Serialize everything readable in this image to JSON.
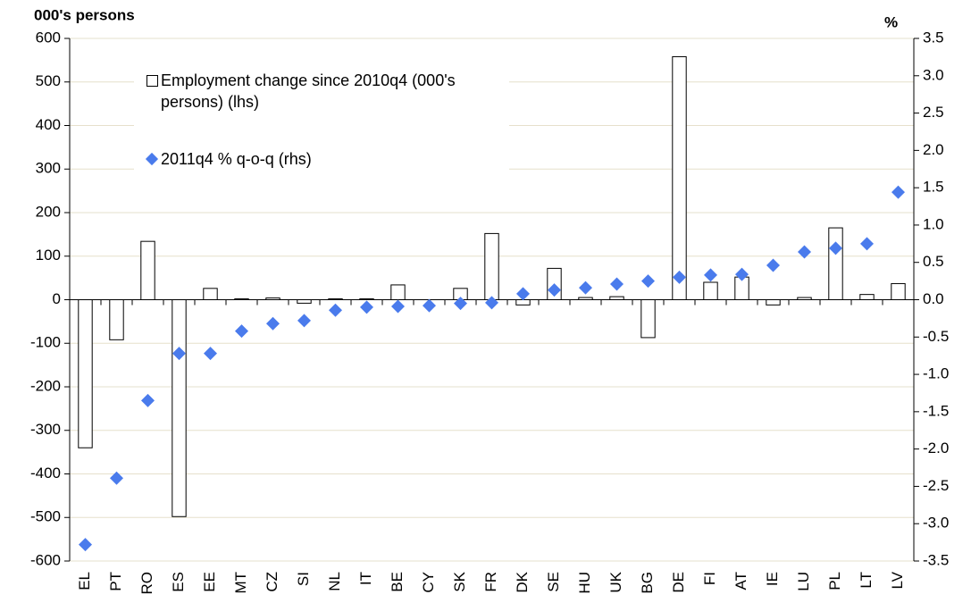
{
  "chart_data": {
    "type": "bar",
    "y_label": "000's persons",
    "y2_label": "%",
    "categories": [
      "EL",
      "PT",
      "RO",
      "ES",
      "EE",
      "MT",
      "CZ",
      "SI",
      "NL",
      "IT",
      "BE",
      "CY",
      "SK",
      "FR",
      "DK",
      "SE",
      "HU",
      "UK",
      "BG",
      "DE",
      "FI",
      "AT",
      "IE",
      "LU",
      "PL",
      "LT",
      "LV"
    ],
    "series": [
      {
        "name": "Employment change since 2010q4 (000's persons) (lhs)",
        "type": "bar",
        "color": "#ffffff",
        "values": [
          -340,
          -92,
          134,
          -498,
          26,
          2,
          4,
          -8,
          2,
          2,
          34,
          0,
          26,
          152,
          -12,
          72,
          5,
          7,
          -87,
          558,
          40,
          52,
          -12,
          5,
          165,
          12,
          37
        ]
      },
      {
        "name": "2011q4 % q-o-q (rhs)",
        "type": "scatter",
        "color": "#4a7bec",
        "axis": "y2",
        "values": [
          -3.28,
          -2.39,
          -1.35,
          -0.72,
          -0.72,
          -0.42,
          -0.32,
          -0.28,
          -0.14,
          -0.1,
          -0.09,
          -0.08,
          -0.05,
          -0.04,
          0.08,
          0.13,
          0.16,
          0.21,
          0.25,
          0.3,
          0.33,
          0.34,
          0.46,
          0.64,
          0.69,
          0.75,
          1.44
        ]
      }
    ],
    "ylim": [
      -600,
      600
    ],
    "yticks": [
      -600,
      -500,
      -400,
      -300,
      -200,
      -100,
      0,
      100,
      200,
      300,
      400,
      500,
      600
    ],
    "y2lim": [
      -3.5,
      3.5
    ],
    "y2ticks": [
      -3.5,
      {
        "value": -3,
        "label": "-3.0"
      },
      -2.5,
      {
        "value": -2,
        "label": "-2.0"
      },
      -1.5,
      {
        "value": -1,
        "label": "-1.0"
      },
      -0.5,
      {
        "value": 0,
        "label": "0.0"
      },
      0.5,
      {
        "value": 1,
        "label": "1.0"
      },
      1.5,
      {
        "value": 2,
        "label": "2.0"
      },
      2.5,
      {
        "value": 3,
        "label": "3.0"
      },
      3.5
    ],
    "grid": true,
    "legend": "upper left"
  }
}
